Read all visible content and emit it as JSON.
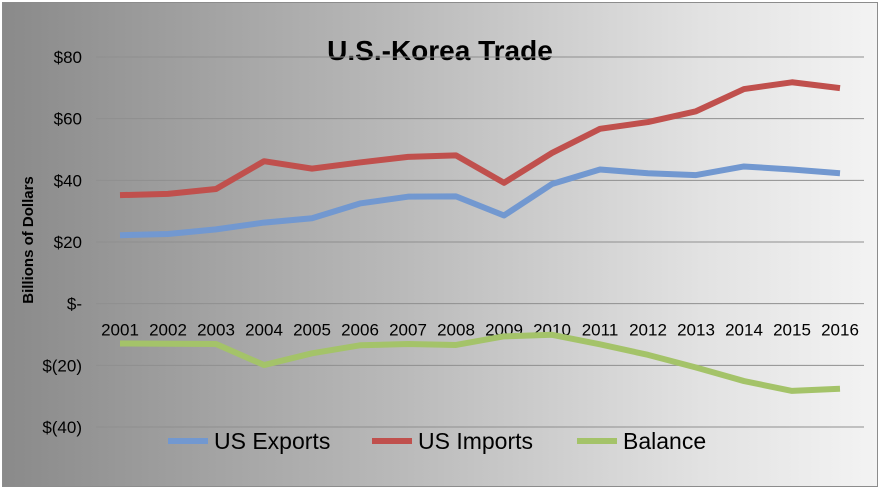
{
  "chart_data": {
    "type": "line",
    "title": "U.S.-Korea Trade",
    "xlabel": "",
    "ylabel": "Billions of Dollars",
    "categories": [
      "2001",
      "2002",
      "2003",
      "2004",
      "2005",
      "2006",
      "2007",
      "2008",
      "2009",
      "2010",
      "2011",
      "2012",
      "2013",
      "2014",
      "2015",
      "2016"
    ],
    "y_tick_values": [
      80,
      60,
      40,
      20,
      0,
      -20,
      -40
    ],
    "y_tick_labels": [
      "$80",
      "$60",
      "$40",
      "$20",
      "$-",
      "$(20)",
      "$(40)"
    ],
    "ylim": [
      -40,
      80
    ],
    "grid": true,
    "legend_position": "bottom",
    "series": [
      {
        "name": "US Exports",
        "color": "#7298d0",
        "values": [
          22.2,
          22.6,
          24.1,
          26.3,
          27.7,
          32.5,
          34.7,
          34.8,
          28.6,
          38.8,
          43.5,
          42.3,
          41.7,
          44.5,
          43.5,
          42.3
        ]
      },
      {
        "name": "US Imports",
        "color": "#c0504d",
        "values": [
          35.2,
          35.6,
          37.2,
          46.2,
          43.8,
          45.8,
          47.6,
          48.1,
          39.2,
          48.9,
          56.7,
          58.9,
          62.4,
          69.6,
          71.8,
          69.9
        ]
      },
      {
        "name": "Balance",
        "color": "#a4c369",
        "values": [
          -12.9,
          -13.0,
          -13.1,
          -19.9,
          -16.1,
          -13.5,
          -13.1,
          -13.4,
          -10.6,
          -10.1,
          -13.2,
          -16.6,
          -20.7,
          -25.1,
          -28.3,
          -27.6
        ]
      }
    ]
  }
}
